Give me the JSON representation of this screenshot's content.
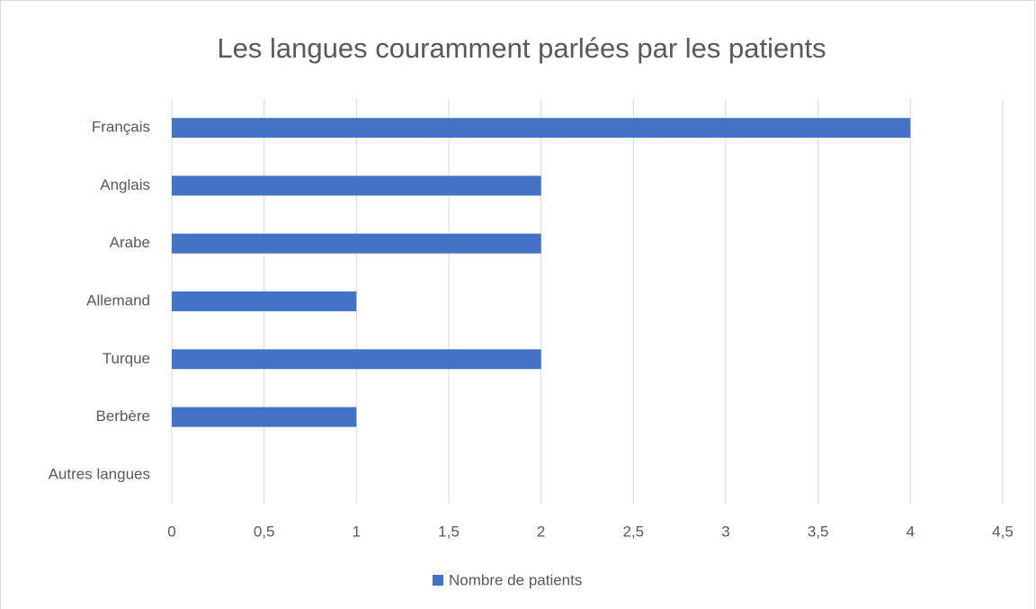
{
  "chart_data": {
    "type": "bar",
    "orientation": "horizontal",
    "title": "Les langues couramment parlées par les patients",
    "categories": [
      "Français",
      "Anglais",
      "Arabe",
      "Allemand",
      "Turque",
      "Berbère",
      "Autres langues"
    ],
    "series": [
      {
        "name": "Nombre de patients",
        "color": "#4472c4",
        "values": [
          4,
          2,
          2,
          1,
          2,
          1,
          0
        ]
      }
    ],
    "xlim": [
      0,
      4.5
    ],
    "xticks": [
      0,
      {
        "value": 0.5,
        "label": "0,5"
      },
      1,
      {
        "value": 1.5,
        "label": "1,5"
      },
      2,
      {
        "value": 2.5,
        "label": "2,5"
      },
      3,
      {
        "value": 3.5,
        "label": "3,5"
      },
      4,
      {
        "value": 4.5,
        "label": "4,5"
      }
    ],
    "grid": true,
    "legend": "bottom"
  }
}
